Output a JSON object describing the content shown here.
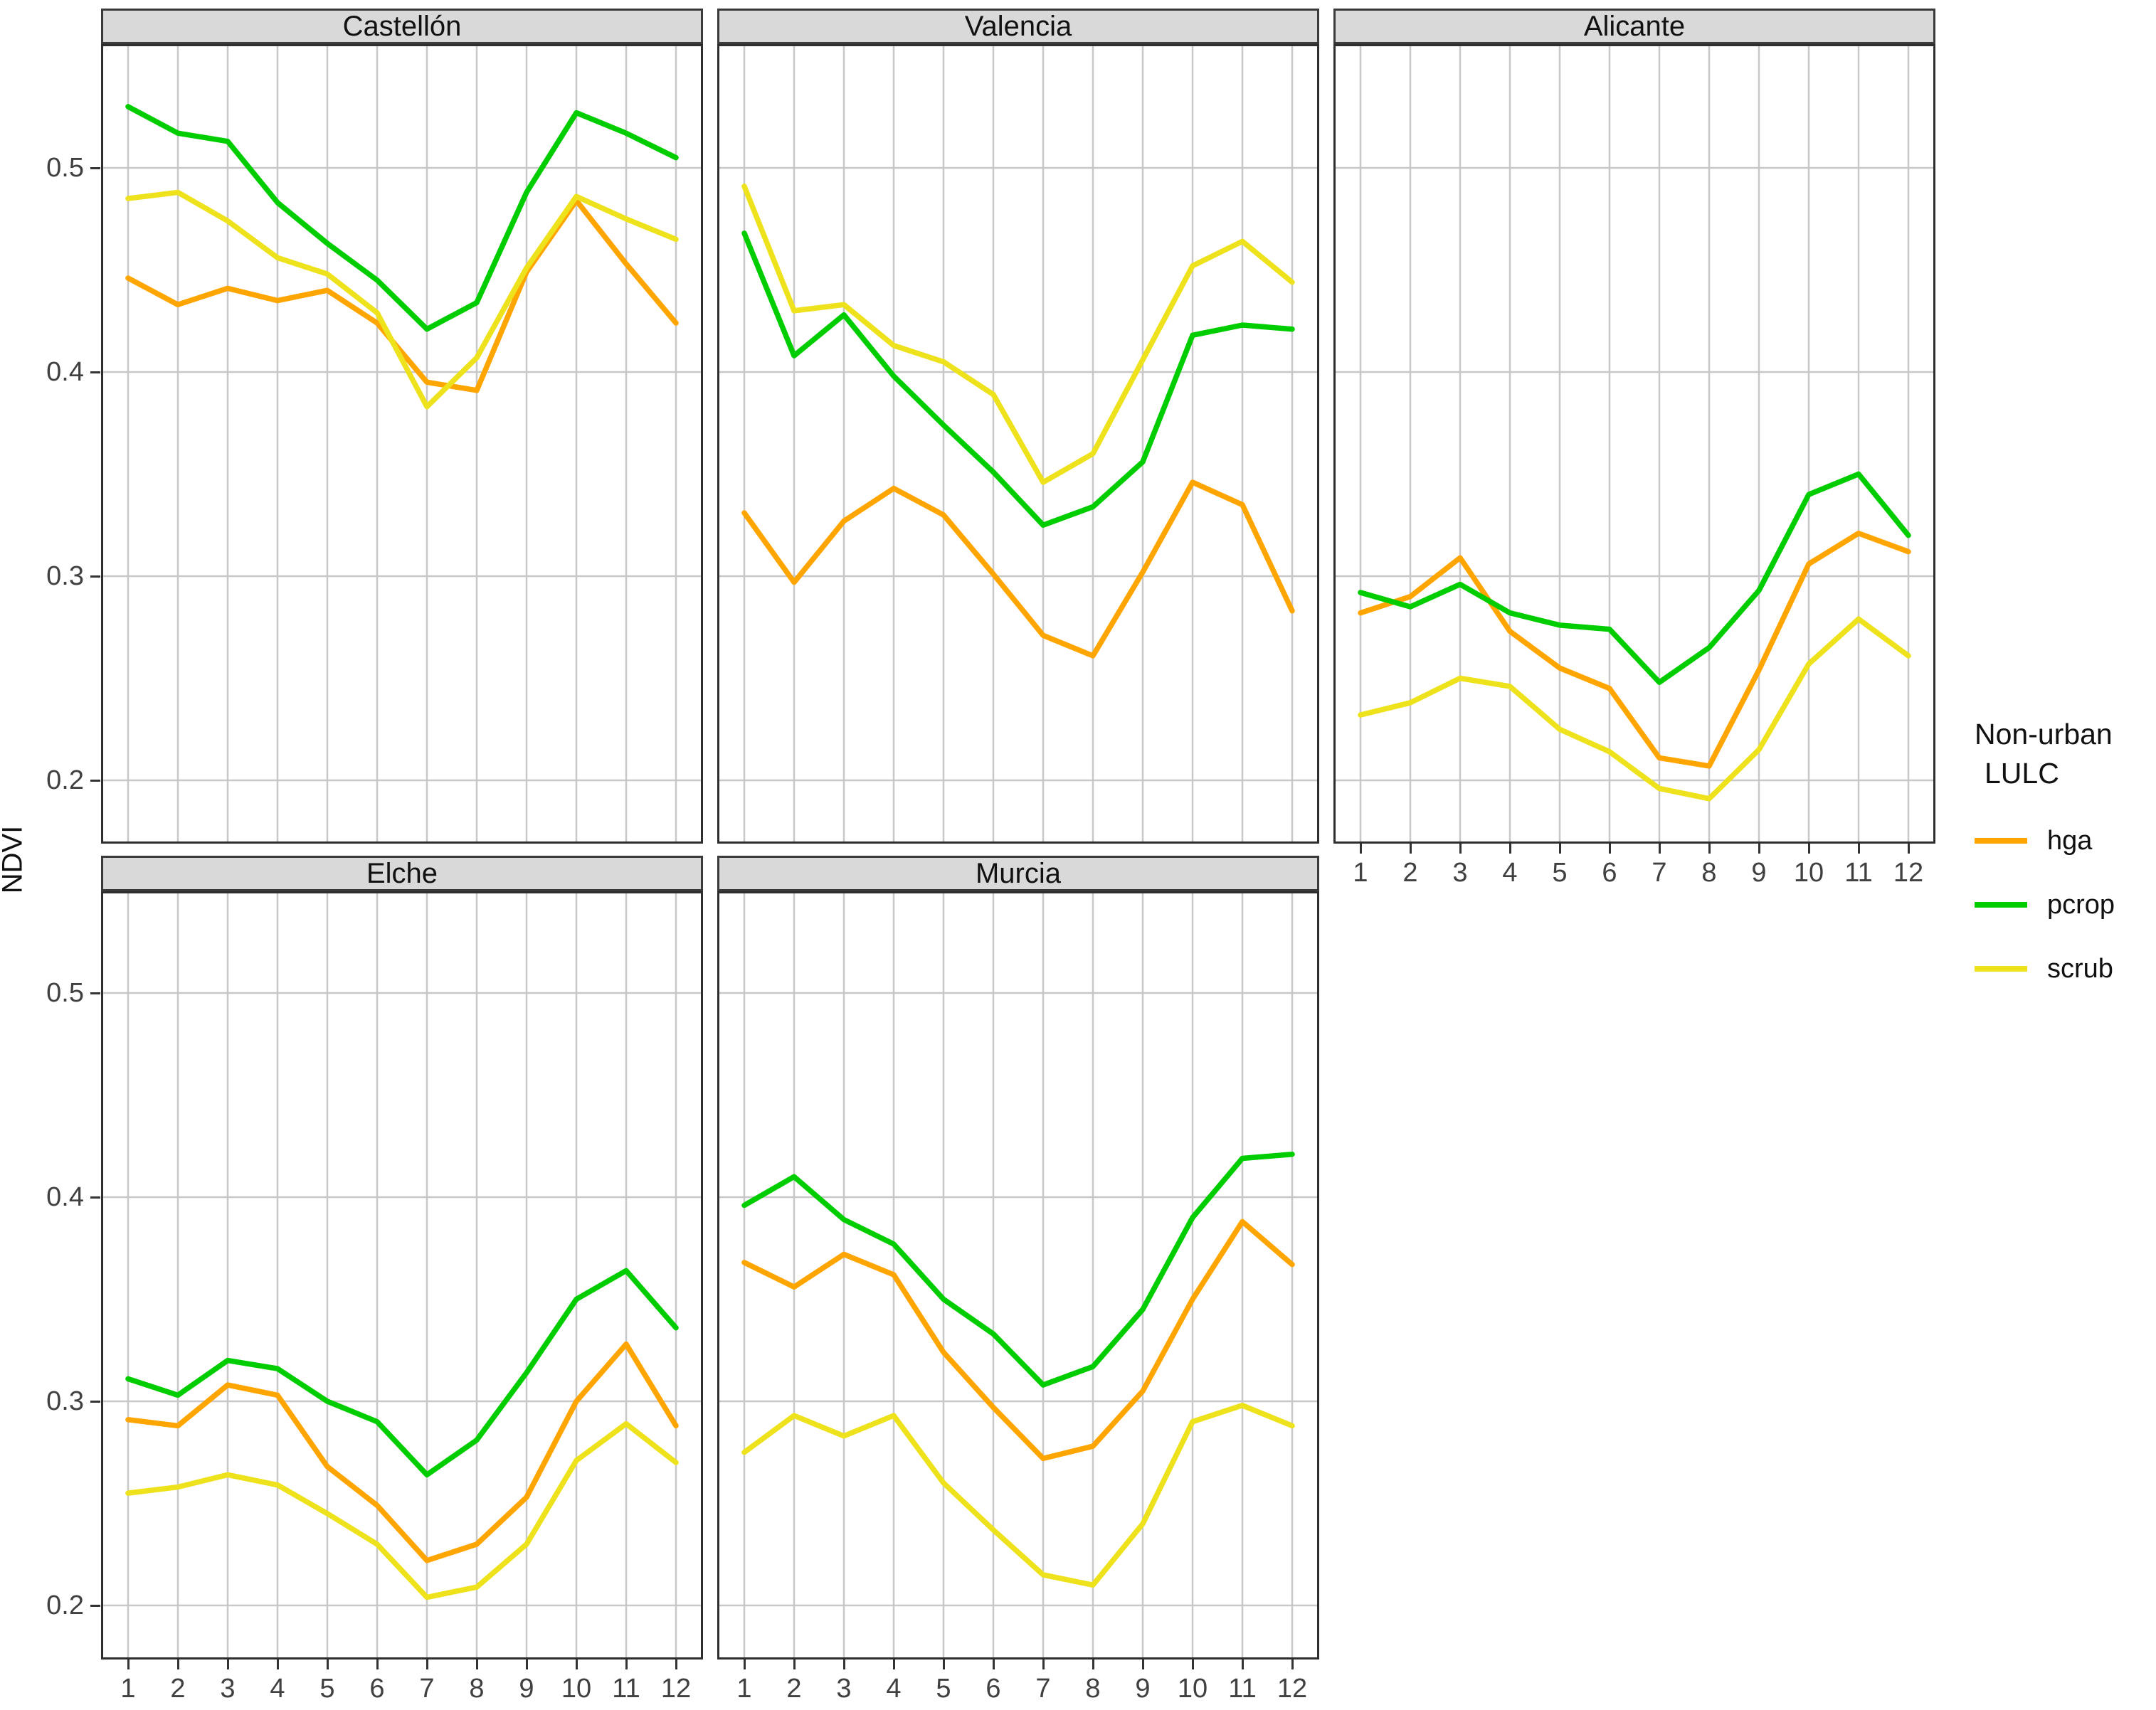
{
  "figure": {
    "ylabel": "NDVI"
  },
  "legend": {
    "title_line1": "Non-urban",
    "title_line2": "LULC",
    "items": [
      {
        "label": "hga",
        "color": "#FFA500"
      },
      {
        "label": "pcrop",
        "color": "#00CD00"
      },
      {
        "label": "scrub",
        "color": "#EDE21B"
      }
    ]
  },
  "chart_data": {
    "type": "line",
    "title": "",
    "xlabel": "",
    "ylabel": "NDVI",
    "x": [
      1,
      2,
      3,
      4,
      5,
      6,
      7,
      8,
      9,
      10,
      11,
      12
    ],
    "x_ticks": [
      "1",
      "2",
      "3",
      "4",
      "5",
      "6",
      "7",
      "8",
      "9",
      "10",
      "11",
      "12"
    ],
    "y_ticks": [
      "0.5",
      "0.4",
      "0.3",
      "0.2"
    ],
    "y_tick_values": [
      0.5,
      0.4,
      0.3,
      0.2
    ],
    "ylim": [
      0.17,
      0.56
    ],
    "grid": "major gray gridlines on white, black panel border",
    "legend_position": "right",
    "facet_layout": "2 rows x 3 columns, bottom-right cell empty",
    "panels": [
      {
        "title": "Castellón",
        "series": [
          {
            "name": "hga",
            "values": [
              0.446,
              0.433,
              0.441,
              0.435,
              0.44,
              0.424,
              0.395,
              0.391,
              0.449,
              0.484,
              0.453,
              0.424
            ]
          },
          {
            "name": "pcrop",
            "values": [
              0.53,
              0.517,
              0.513,
              0.483,
              0.463,
              0.445,
              0.421,
              0.434,
              0.488,
              0.527,
              0.517,
              0.505
            ]
          },
          {
            "name": "scrub",
            "values": [
              0.485,
              0.488,
              0.474,
              0.456,
              0.448,
              0.429,
              0.383,
              0.407,
              0.451,
              0.486,
              0.475,
              0.465
            ]
          }
        ]
      },
      {
        "title": "Valencia",
        "series": [
          {
            "name": "hga",
            "values": [
              0.331,
              0.297,
              0.327,
              0.343,
              0.33,
              0.301,
              0.271,
              0.261,
              0.302,
              0.346,
              0.335,
              0.283
            ]
          },
          {
            "name": "pcrop",
            "values": [
              0.468,
              0.408,
              0.428,
              0.398,
              0.374,
              0.351,
              0.325,
              0.334,
              0.356,
              0.418,
              0.423,
              0.421
            ]
          },
          {
            "name": "scrub",
            "values": [
              0.491,
              0.43,
              0.433,
              0.413,
              0.405,
              0.389,
              0.346,
              0.36,
              0.406,
              0.452,
              0.464,
              0.444
            ]
          }
        ]
      },
      {
        "title": "Alicante",
        "series": [
          {
            "name": "hga",
            "values": [
              0.282,
              0.29,
              0.309,
              0.273,
              0.255,
              0.245,
              0.211,
              0.207,
              0.254,
              0.306,
              0.321,
              0.312
            ]
          },
          {
            "name": "pcrop",
            "values": [
              0.292,
              0.285,
              0.296,
              0.282,
              0.276,
              0.274,
              0.248,
              0.265,
              0.293,
              0.34,
              0.35,
              0.32
            ]
          },
          {
            "name": "scrub",
            "values": [
              0.232,
              0.238,
              0.25,
              0.246,
              0.225,
              0.214,
              0.196,
              0.191,
              0.215,
              0.257,
              0.279,
              0.261
            ]
          }
        ]
      },
      {
        "title": "Elche",
        "series": [
          {
            "name": "hga",
            "values": [
              0.291,
              0.288,
              0.308,
              0.303,
              0.268,
              0.249,
              0.222,
              0.23,
              0.253,
              0.3,
              0.328,
              0.288
            ]
          },
          {
            "name": "pcrop",
            "values": [
              0.311,
              0.303,
              0.32,
              0.316,
              0.3,
              0.29,
              0.264,
              0.281,
              0.314,
              0.35,
              0.364,
              0.336
            ]
          },
          {
            "name": "scrub",
            "values": [
              0.255,
              0.258,
              0.264,
              0.259,
              0.245,
              0.23,
              0.204,
              0.209,
              0.23,
              0.271,
              0.289,
              0.27
            ]
          }
        ]
      },
      {
        "title": "Murcia",
        "series": [
          {
            "name": "hga",
            "values": [
              0.368,
              0.356,
              0.372,
              0.362,
              0.324,
              0.297,
              0.272,
              0.278,
              0.305,
              0.35,
              0.388,
              0.367
            ]
          },
          {
            "name": "pcrop",
            "values": [
              0.396,
              0.41,
              0.389,
              0.377,
              0.35,
              0.333,
              0.308,
              0.317,
              0.345,
              0.39,
              0.419,
              0.421
            ]
          },
          {
            "name": "scrub",
            "values": [
              0.275,
              0.293,
              0.283,
              0.293,
              0.26,
              0.237,
              0.215,
              0.21,
              0.24,
              0.29,
              0.298,
              0.288
            ]
          }
        ]
      }
    ]
  }
}
